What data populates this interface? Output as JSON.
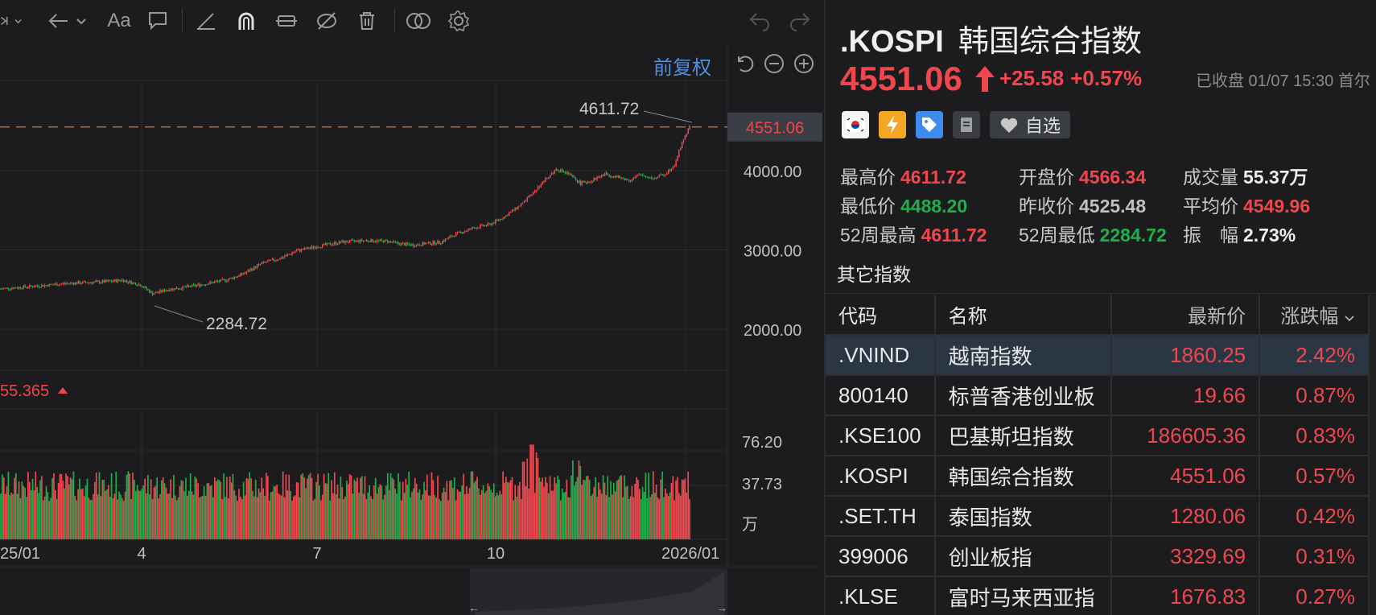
{
  "toolbar": {
    "icons": [
      "play-dropdown-icon",
      "back-arrow-icon",
      "font-icon",
      "comment-icon",
      "line-icon",
      "magnet-icon",
      "measure-icon",
      "hide-icon",
      "trash-icon",
      "compare-icon",
      "settings-icon",
      "undo-icon",
      "redo-icon"
    ],
    "font_label": "Aa"
  },
  "chart_controls": {
    "adjust_label": "前复权"
  },
  "chart_data": {
    "type": "candlestick",
    "current_price": "4551.06",
    "high_label": "4611.72",
    "low_label": "2284.72",
    "y_ticks": [
      "4000.00",
      "3000.00",
      "2000.00"
    ],
    "x_ticks": [
      "25/01",
      "4",
      "7",
      "10",
      "2026/01"
    ],
    "volume_indicator": "55.365",
    "volume_ticks": [
      "76.20",
      "37.73"
    ],
    "volume_unit": "万",
    "up_color": "#f0474e",
    "down_color": "#1fae4b"
  },
  "quote": {
    "symbol": ".KOSPI",
    "name": "韩国综合指数",
    "price": "4551.06",
    "change": "+25.58",
    "change_pct": "+0.57%",
    "status": "已收盘 01/07 15:30 首尔",
    "watch_label": "自选"
  },
  "stats": [
    [
      {
        "k": "最高价",
        "v": "4611.72",
        "c": "red"
      },
      {
        "k": "开盘价",
        "v": "4566.34",
        "c": "red"
      },
      {
        "k": "成交量",
        "v": "55.37万",
        "c": "white"
      }
    ],
    [
      {
        "k": "最低价",
        "v": "4488.20",
        "c": "green"
      },
      {
        "k": "昨收价",
        "v": "4525.48",
        "c": "gray"
      },
      {
        "k": "平均价",
        "v": "4549.96",
        "c": "red"
      }
    ],
    [
      {
        "k": "52周最高",
        "v": "4611.72",
        "c": "red"
      },
      {
        "k": "52周最低",
        "v": "2284.72",
        "c": "green"
      },
      {
        "k": "振　幅",
        "v": "2.73%",
        "c": "white"
      }
    ]
  ],
  "others": {
    "title": "其它指数",
    "headers": {
      "code": "代码",
      "name": "名称",
      "price": "最新价",
      "pct": "涨跌幅"
    },
    "rows": [
      {
        "code": ".VNIND",
        "name": "越南指数",
        "price": "1860.25",
        "pct": "2.42%"
      },
      {
        "code": "800140",
        "name": "标普香港创业板",
        "price": "19.66",
        "pct": "0.87%"
      },
      {
        "code": ".KSE100",
        "name": "巴基斯坦指数",
        "price": "186605.36",
        "pct": "0.83%"
      },
      {
        "code": ".KOSPI",
        "name": "韩国综合指数",
        "price": "4551.06",
        "pct": "0.57%"
      },
      {
        "code": ".SET.TH",
        "name": "泰国指数",
        "price": "1280.06",
        "pct": "0.42%"
      },
      {
        "code": "399006",
        "name": "创业板指",
        "price": "3329.69",
        "pct": "0.31%"
      },
      {
        "code": ".KLSE",
        "name": "富时马来西亚指",
        "price": "1676.83",
        "pct": "0.27%"
      }
    ]
  }
}
